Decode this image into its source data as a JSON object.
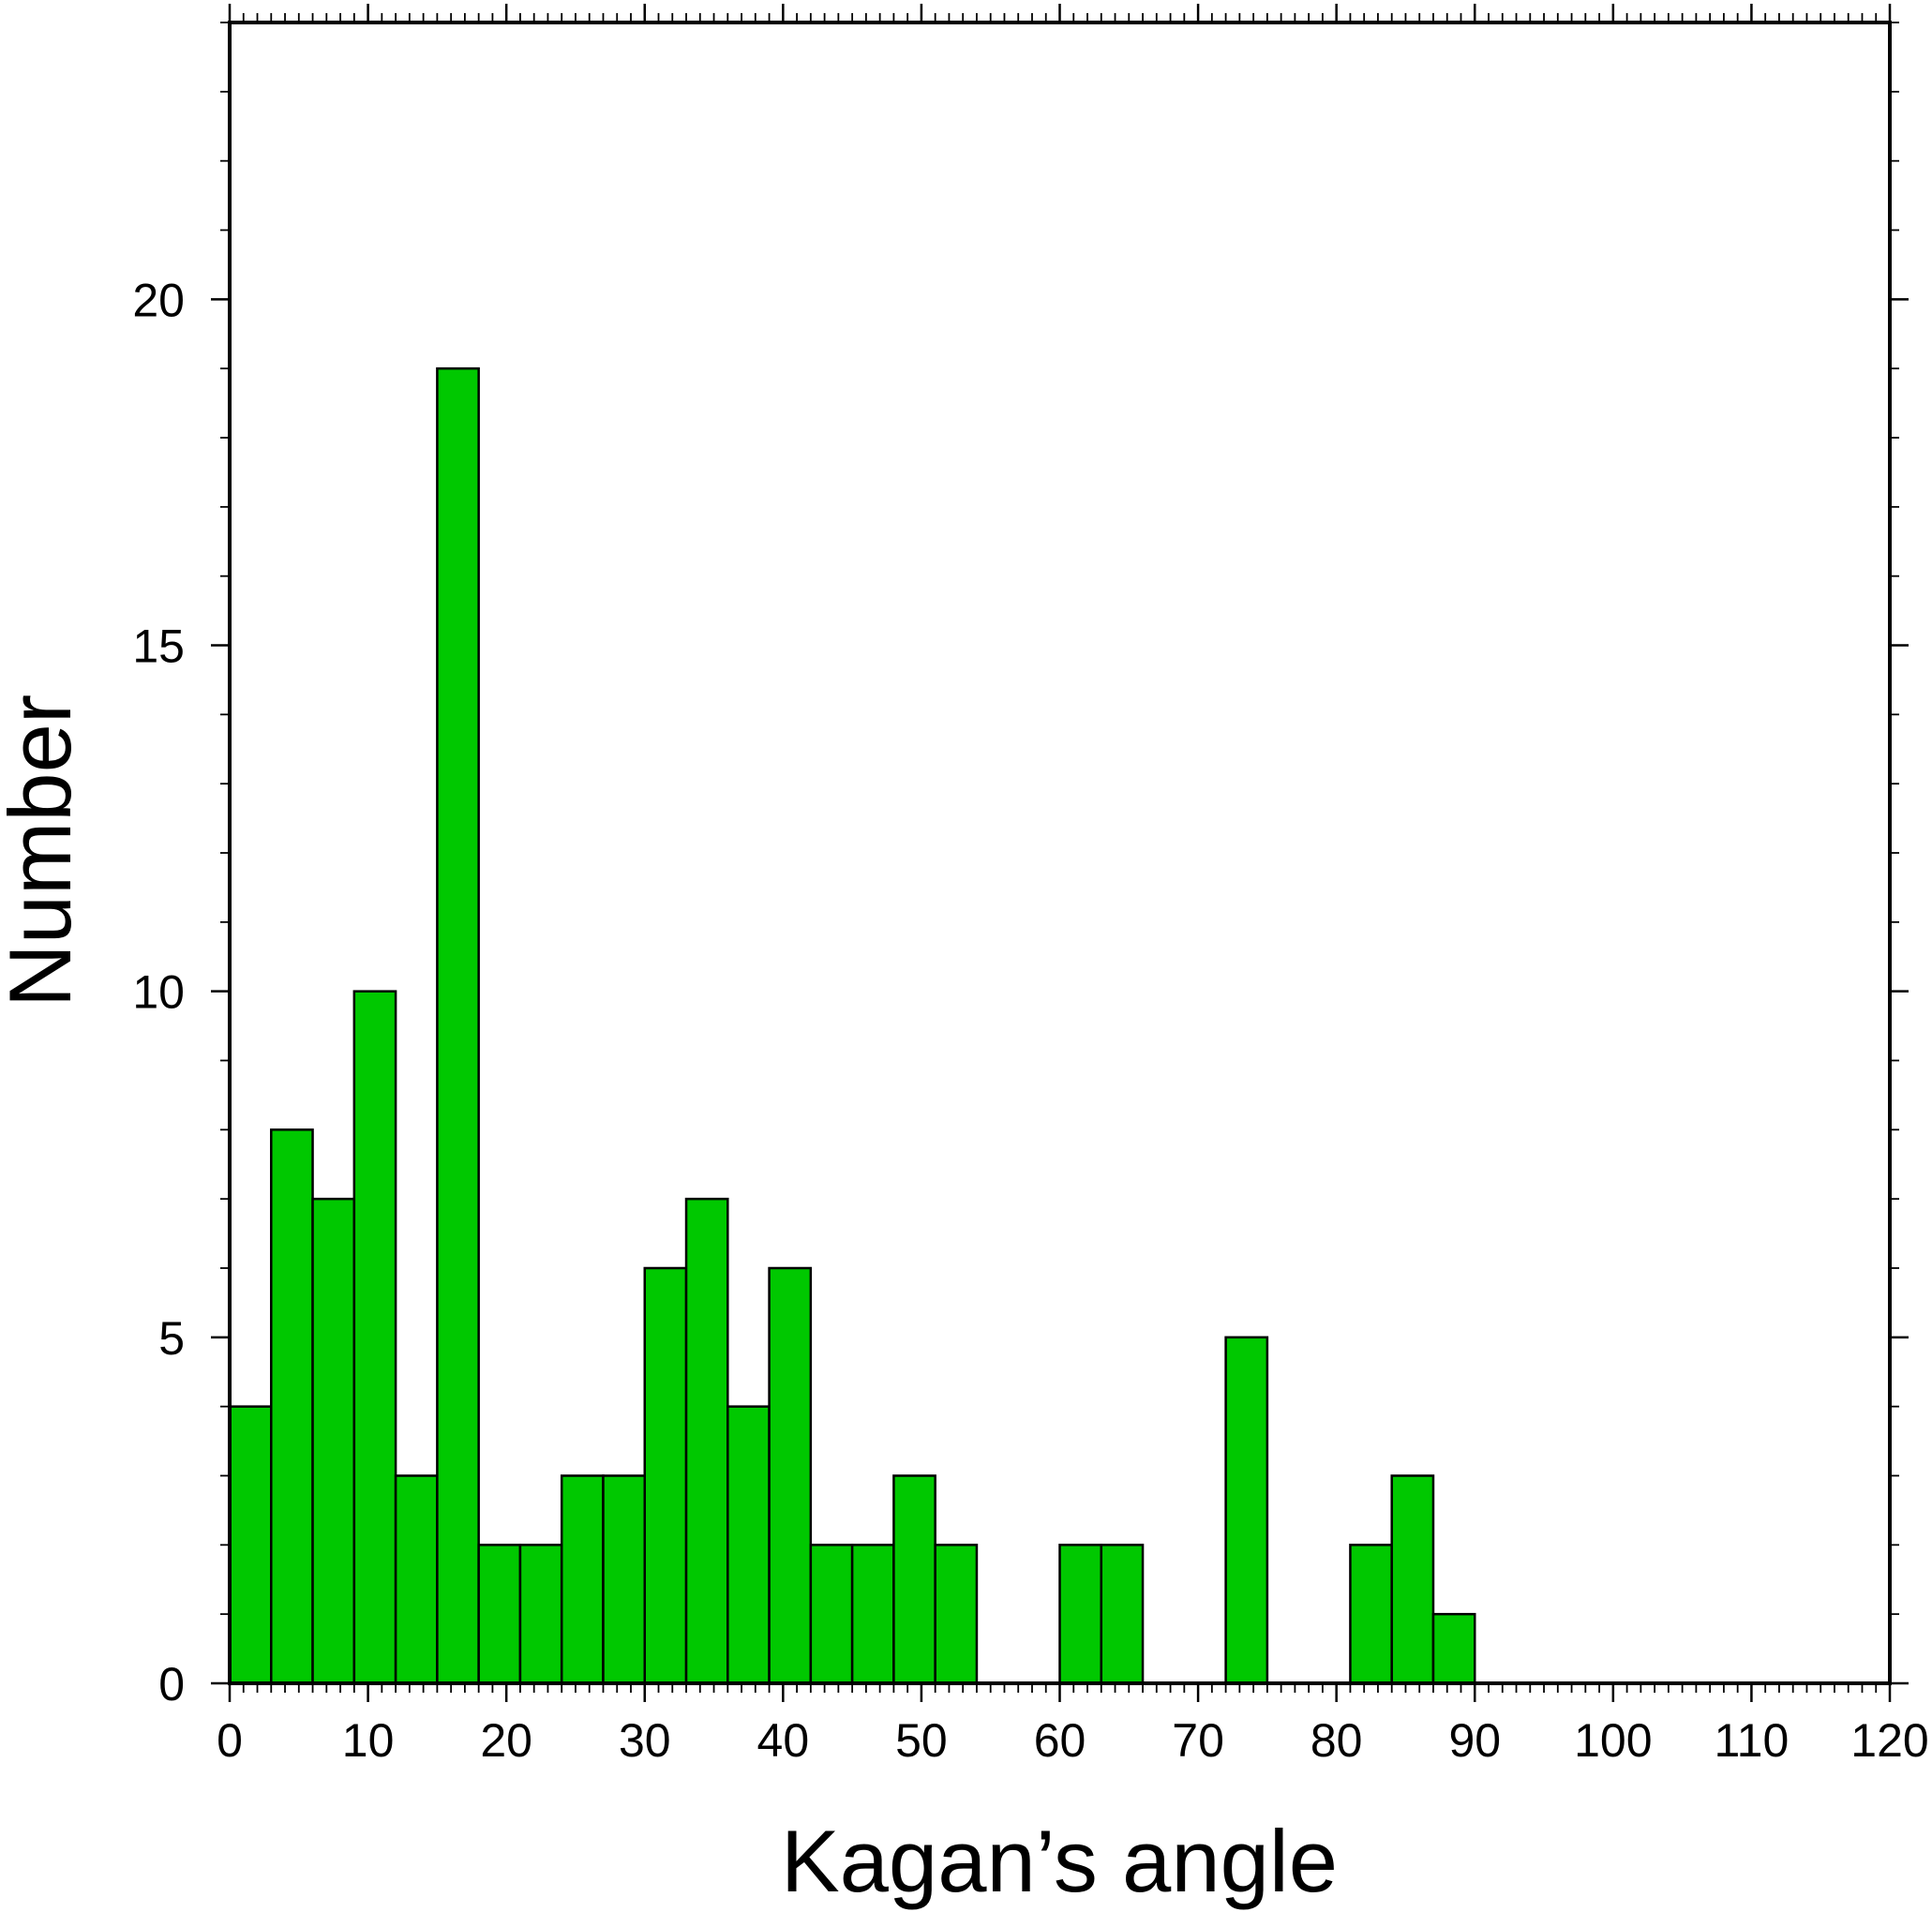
{
  "chart_data": {
    "type": "bar",
    "title": "",
    "xlabel": "Kagan’s angle",
    "ylabel": "Number",
    "xlim": [
      0,
      120
    ],
    "ylim": [
      0,
      24
    ],
    "bin_width": 3,
    "x_ticks": [
      0,
      10,
      20,
      30,
      40,
      50,
      60,
      70,
      80,
      90,
      100,
      110,
      120
    ],
    "y_ticks": [
      0,
      5,
      10,
      15,
      20
    ],
    "bar_color": "#00c800",
    "grid": false,
    "legend": "none",
    "bins": [
      {
        "x0": 0,
        "x1": 3,
        "count": 4
      },
      {
        "x0": 3,
        "x1": 6,
        "count": 8
      },
      {
        "x0": 6,
        "x1": 9,
        "count": 7
      },
      {
        "x0": 9,
        "x1": 12,
        "count": 10
      },
      {
        "x0": 12,
        "x1": 15,
        "count": 3
      },
      {
        "x0": 15,
        "x1": 18,
        "count": 19
      },
      {
        "x0": 18,
        "x1": 21,
        "count": 2
      },
      {
        "x0": 21,
        "x1": 24,
        "count": 2
      },
      {
        "x0": 24,
        "x1": 27,
        "count": 3
      },
      {
        "x0": 27,
        "x1": 30,
        "count": 3
      },
      {
        "x0": 30,
        "x1": 33,
        "count": 6
      },
      {
        "x0": 33,
        "x1": 36,
        "count": 7
      },
      {
        "x0": 36,
        "x1": 39,
        "count": 4
      },
      {
        "x0": 39,
        "x1": 42,
        "count": 6
      },
      {
        "x0": 42,
        "x1": 45,
        "count": 2
      },
      {
        "x0": 45,
        "x1": 48,
        "count": 2
      },
      {
        "x0": 48,
        "x1": 51,
        "count": 3
      },
      {
        "x0": 51,
        "x1": 54,
        "count": 2
      },
      {
        "x0": 60,
        "x1": 63,
        "count": 2
      },
      {
        "x0": 63,
        "x1": 66,
        "count": 2
      },
      {
        "x0": 72,
        "x1": 75,
        "count": 5
      },
      {
        "x0": 81,
        "x1": 84,
        "count": 2
      },
      {
        "x0": 84,
        "x1": 87,
        "count": 3
      },
      {
        "x0": 87,
        "x1": 90,
        "count": 1
      }
    ]
  }
}
